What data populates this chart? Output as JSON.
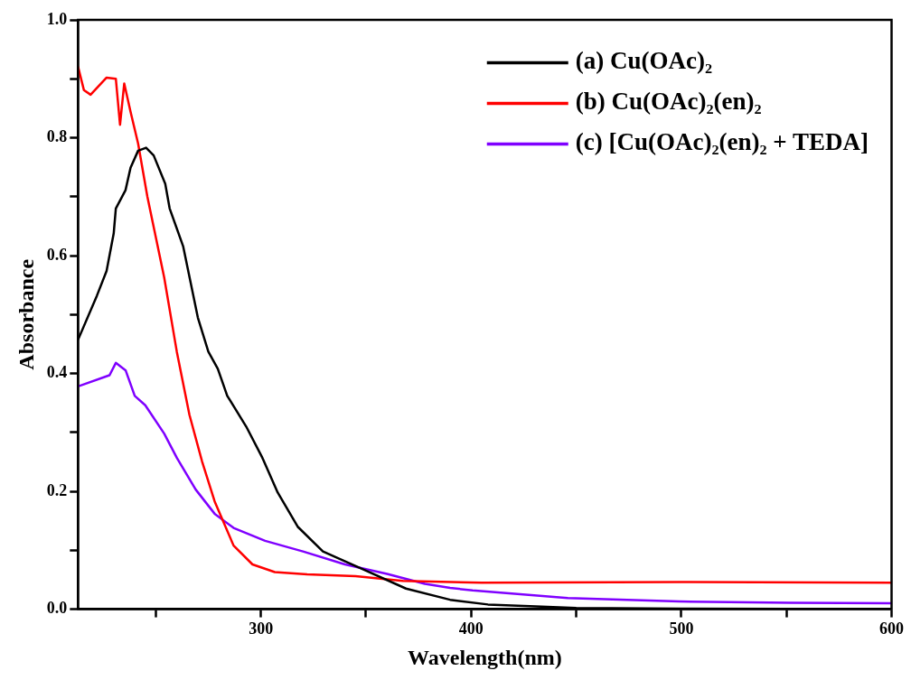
{
  "chart_data": {
    "type": "line",
    "xlabel": "Wavelength(nm)",
    "ylabel": "Absorbance",
    "xlim": [
      213,
      600
    ],
    "ylim": [
      0,
      1.0
    ],
    "xticks": [
      {
        "value": 250,
        "label": null
      },
      300,
      {
        "value": 350,
        "label": null
      },
      400,
      {
        "value": 450,
        "label": null
      },
      500,
      {
        "value": 550,
        "label": null
      },
      600
    ],
    "yticks": [
      {
        "value": 0,
        "label": "0.0"
      },
      {
        "value": 0.1,
        "label": null
      },
      0.2,
      {
        "value": 0.3,
        "label": null
      },
      0.4,
      {
        "value": 0.5,
        "label": null
      },
      0.6,
      {
        "value": 0.7,
        "label": null
      },
      0.8,
      {
        "value": 0.9,
        "label": null
      },
      {
        "value": 1.0,
        "label": "1.0"
      }
    ],
    "grid": false,
    "legend": "top right",
    "marker": "none",
    "line_style": "solid",
    "series": [
      {
        "name": "(a) Cu(OAc)₂",
        "color": "#000000",
        "x": [
          213,
          222,
          226.6,
          230,
          231,
          235.6,
          238,
          241.6,
          245.4,
          249,
          254.5,
          256.6,
          263,
          270,
          275,
          279.5,
          284,
          293,
          300.7,
          308,
          317.5,
          329.5,
          349,
          369,
          390,
          408,
          428,
          450,
          500,
          600
        ],
        "values": [
          0.457,
          0.532,
          0.574,
          0.638,
          0.68,
          0.711,
          0.749,
          0.778,
          0.783,
          0.77,
          0.722,
          0.68,
          0.616,
          0.495,
          0.437,
          0.408,
          0.362,
          0.31,
          0.257,
          0.198,
          0.14,
          0.098,
          0.067,
          0.035,
          0.016,
          0.008,
          0.005,
          0.002,
          0.001,
          0.0
        ]
      },
      {
        "name": "(b) Cu(OAc)₂(en)₂",
        "color": "#ff0000",
        "x": [
          213,
          215.8,
          219,
          226.6,
          231,
          233,
          235,
          238,
          241.6,
          246,
          254,
          260,
          266,
          272,
          278,
          287,
          296,
          306.6,
          322,
          345,
          367.5,
          405,
          500,
          600
        ],
        "values": [
          0.921,
          0.881,
          0.873,
          0.902,
          0.9,
          0.822,
          0.892,
          0.844,
          0.79,
          0.7,
          0.563,
          0.437,
          0.33,
          0.251,
          0.183,
          0.108,
          0.076,
          0.063,
          0.059,
          0.056,
          0.048,
          0.045,
          0.046,
          0.045
        ]
      },
      {
        "name": "(c) [Cu(OAc)₂(en)₂ + TEDA]",
        "color": "#7f00ff",
        "x": [
          213,
          228,
          231,
          235.7,
          240,
          245,
          254,
          260,
          269,
          278,
          287,
          302,
          320,
          340,
          360,
          378,
          390,
          400.7,
          446,
          499,
          552,
          600
        ],
        "values": [
          0.378,
          0.397,
          0.418,
          0.405,
          0.362,
          0.346,
          0.298,
          0.257,
          0.203,
          0.162,
          0.138,
          0.116,
          0.098,
          0.076,
          0.06,
          0.043,
          0.036,
          0.032,
          0.019,
          0.013,
          0.011,
          0.01
        ]
      }
    ]
  }
}
